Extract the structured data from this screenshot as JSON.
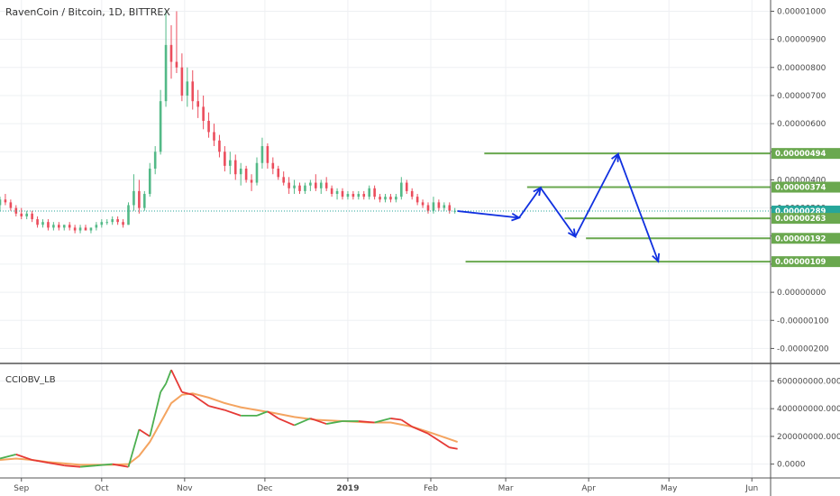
{
  "title": "RavenCoin / Bitcoin, 1D, BITTREX",
  "indicator_label": "CCIOBV_LB",
  "colors": {
    "up": "#53b987",
    "down": "#eb4d5c",
    "level": "#6aa84f",
    "last_price": "#26a69a",
    "arrow": "#1030e0",
    "obv": "#4caf50",
    "obv_down": "#e53935",
    "signal": "#f4a460",
    "grid": "#eef0f3",
    "axis": "#555555"
  },
  "price_axis_labels": [
    "0.00001000",
    "0.00000900",
    "0.00000800",
    "0.00000700",
    "0.00000600",
    "0.00000500",
    "0.00000400",
    "0.00000300",
    "0.00000200",
    "0.00000100",
    "0.00000000",
    "-0.00000100",
    "-0.00000200"
  ],
  "indicator_axis_labels": [
    "600000000.0000",
    "400000000.0000",
    "200000000.0000",
    "0.0000"
  ],
  "time_labels": [
    "Sep",
    "Oct",
    "Nov",
    "Dec",
    "2019",
    "Feb",
    "Mar",
    "Apr",
    "May",
    "Jun"
  ],
  "price_badges": [
    {
      "label": "0.00000494",
      "kind": "level"
    },
    {
      "label": "0.00000374",
      "kind": "level"
    },
    {
      "label": "0.00000289",
      "kind": "last"
    },
    {
      "label": "0.00000263",
      "kind": "level"
    },
    {
      "label": "0.00000192",
      "kind": "level"
    },
    {
      "label": "0.00000109",
      "kind": "level"
    }
  ],
  "chart_data": {
    "type": "candlestick",
    "title": "RavenCoin / Bitcoin, 1D, BITTREX",
    "y_unit": "BTC",
    "ylim": [
      -2.5e-06,
      1.04e-05
    ],
    "x_range": [
      "2018-08-24",
      "2019-06-08"
    ],
    "last_price": 2.89e-06,
    "horizontal_levels": [
      {
        "value": 4.94e-06,
        "from": "2019-02-21",
        "to": "2019-06-08"
      },
      {
        "value": 3.74e-06,
        "from": "2019-03-09",
        "to": "2019-06-08"
      },
      {
        "value": 2.63e-06,
        "from": "2019-03-23",
        "to": "2019-06-08"
      },
      {
        "value": 1.92e-06,
        "from": "2019-03-31",
        "to": "2019-06-08"
      },
      {
        "value": 1.09e-06,
        "from": "2019-02-14",
        "to": "2019-06-08"
      }
    ],
    "projection_path": [
      {
        "date": "2019-02-11",
        "value": 2.89e-06
      },
      {
        "date": "2019-03-06",
        "value": 2.65e-06
      },
      {
        "date": "2019-03-14",
        "value": 3.72e-06
      },
      {
        "date": "2019-03-27",
        "value": 1.98e-06
      },
      {
        "date": "2019-04-12",
        "value": 4.92e-06
      },
      {
        "date": "2019-04-27",
        "value": 1.1e-06
      }
    ],
    "candles": [
      [
        "2018-08-24",
        3.1e-06,
        3.4e-06,
        2.9e-06,
        3.3e-06
      ],
      [
        "2018-08-26",
        3.3e-06,
        3.5e-06,
        3.1e-06,
        3.2e-06
      ],
      [
        "2018-08-28",
        3.2e-06,
        3.3e-06,
        2.9e-06,
        3e-06
      ],
      [
        "2018-08-30",
        3e-06,
        3.1e-06,
        2.7e-06,
        2.8e-06
      ],
      [
        "2018-09-01",
        2.8e-06,
        3e-06,
        2.6e-06,
        2.7e-06
      ],
      [
        "2018-09-03",
        2.7e-06,
        2.9e-06,
        2.6e-06,
        2.8e-06
      ],
      [
        "2018-09-05",
        2.8e-06,
        2.9e-06,
        2.5e-06,
        2.6e-06
      ],
      [
        "2018-09-07",
        2.6e-06,
        2.7e-06,
        2.3e-06,
        2.4e-06
      ],
      [
        "2018-09-09",
        2.4e-06,
        2.6e-06,
        2.3e-06,
        2.5e-06
      ],
      [
        "2018-09-11",
        2.5e-06,
        2.6e-06,
        2.2e-06,
        2.3e-06
      ],
      [
        "2018-09-13",
        2.3e-06,
        2.5e-06,
        2.2e-06,
        2.4e-06
      ],
      [
        "2018-09-15",
        2.4e-06,
        2.5e-06,
        2.2e-06,
        2.3e-06
      ],
      [
        "2018-09-17",
        2.3e-06,
        2.4e-06,
        2.2e-06,
        2.4e-06
      ],
      [
        "2018-09-19",
        2.4e-06,
        2.5e-06,
        2.2e-06,
        2.3e-06
      ],
      [
        "2018-09-21",
        2.3e-06,
        2.4e-06,
        2.1e-06,
        2.2e-06
      ],
      [
        "2018-09-23",
        2.2e-06,
        2.4e-06,
        2.1e-06,
        2.3e-06
      ],
      [
        "2018-09-25",
        2.3e-06,
        2.4e-06,
        2.2e-06,
        2.2e-06
      ],
      [
        "2018-09-27",
        2.2e-06,
        2.3e-06,
        2.1e-06,
        2.3e-06
      ],
      [
        "2018-09-29",
        2.3e-06,
        2.5e-06,
        2.2e-06,
        2.4e-06
      ],
      [
        "2018-10-01",
        2.4e-06,
        2.6e-06,
        2.3e-06,
        2.5e-06
      ],
      [
        "2018-10-03",
        2.5e-06,
        2.6e-06,
        2.4e-06,
        2.5e-06
      ],
      [
        "2018-10-05",
        2.5e-06,
        2.7e-06,
        2.4e-06,
        2.6e-06
      ],
      [
        "2018-10-07",
        2.6e-06,
        2.7e-06,
        2.4e-06,
        2.5e-06
      ],
      [
        "2018-10-09",
        2.5e-06,
        2.6e-06,
        2.3e-06,
        2.4e-06
      ],
      [
        "2018-10-11",
        2.4e-06,
        3.2e-06,
        2.4e-06,
        3.1e-06
      ],
      [
        "2018-10-13",
        3.1e-06,
        4.2e-06,
        2.9e-06,
        3.6e-06
      ],
      [
        "2018-10-15",
        3.6e-06,
        4e-06,
        2.8e-06,
        3e-06
      ],
      [
        "2018-10-17",
        3e-06,
        3.6e-06,
        2.9e-06,
        3.5e-06
      ],
      [
        "2018-10-19",
        3.5e-06,
        4.6e-06,
        3.4e-06,
        4.4e-06
      ],
      [
        "2018-10-21",
        4.4e-06,
        5.2e-06,
        4.2e-06,
        5e-06
      ],
      [
        "2018-10-23",
        5e-06,
        7.2e-06,
        4.9e-06,
        6.8e-06
      ],
      [
        "2018-10-25",
        6.8e-06,
        1e-05,
        6.6e-06,
        8.8e-06
      ],
      [
        "2018-10-27",
        8.8e-06,
        9.5e-06,
        7.6e-06,
        8.2e-06
      ],
      [
        "2018-10-29",
        8.2e-06,
        1e-05,
        7.8e-06,
        8e-06
      ],
      [
        "2018-10-31",
        8e-06,
        8.5e-06,
        6.8e-06,
        7e-06
      ],
      [
        "2018-11-02",
        7e-06,
        8e-06,
        6.6e-06,
        7.5e-06
      ],
      [
        "2018-11-04",
        7.5e-06,
        7.9e-06,
        6.5e-06,
        6.8e-06
      ],
      [
        "2018-11-06",
        6.8e-06,
        7.2e-06,
        6.2e-06,
        6.6e-06
      ],
      [
        "2018-11-08",
        6.6e-06,
        7e-06,
        5.8e-06,
        6.1e-06
      ],
      [
        "2018-11-10",
        6.1e-06,
        6.4e-06,
        5.5e-06,
        5.7e-06
      ],
      [
        "2018-11-12",
        5.7e-06,
        6e-06,
        5.2e-06,
        5.4e-06
      ],
      [
        "2018-11-14",
        5.4e-06,
        5.6e-06,
        4.8e-06,
        5e-06
      ],
      [
        "2018-11-16",
        5e-06,
        5.2e-06,
        4.3e-06,
        4.5e-06
      ],
      [
        "2018-11-18",
        4.5e-06,
        5e-06,
        4.2e-06,
        4.7e-06
      ],
      [
        "2018-11-20",
        4.7e-06,
        4.9e-06,
        4e-06,
        4.2e-06
      ],
      [
        "2018-11-22",
        4.2e-06,
        4.6e-06,
        3.8e-06,
        4.4e-06
      ],
      [
        "2018-11-24",
        4.4e-06,
        4.5e-06,
        3.9e-06,
        4e-06
      ],
      [
        "2018-11-26",
        4e-06,
        4.2e-06,
        3.6e-06,
        3.9e-06
      ],
      [
        "2018-11-28",
        3.9e-06,
        4.8e-06,
        3.8e-06,
        4.6e-06
      ],
      [
        "2018-11-30",
        4.6e-06,
        5.5e-06,
        4.4e-06,
        5.2e-06
      ],
      [
        "2018-12-02",
        5.2e-06,
        5.3e-06,
        4.4e-06,
        4.6e-06
      ],
      [
        "2018-12-04",
        4.6e-06,
        4.8e-06,
        4.2e-06,
        4.4e-06
      ],
      [
        "2018-12-06",
        4.4e-06,
        4.5e-06,
        4e-06,
        4.1e-06
      ],
      [
        "2018-12-08",
        4.1e-06,
        4.3e-06,
        3.8e-06,
        3.9e-06
      ],
      [
        "2018-12-10",
        3.9e-06,
        4.1e-06,
        3.5e-06,
        3.7e-06
      ],
      [
        "2018-12-12",
        3.7e-06,
        4e-06,
        3.5e-06,
        3.8e-06
      ],
      [
        "2018-12-14",
        3.8e-06,
        3.9e-06,
        3.5e-06,
        3.6e-06
      ],
      [
        "2018-12-16",
        3.6e-06,
        3.9e-06,
        3.5e-06,
        3.8e-06
      ],
      [
        "2018-12-18",
        3.8e-06,
        4e-06,
        3.6e-06,
        3.9e-06
      ],
      [
        "2018-12-20",
        3.9e-06,
        4.2e-06,
        3.6e-06,
        3.7e-06
      ],
      [
        "2018-12-22",
        3.7e-06,
        4e-06,
        3.5e-06,
        3.9e-06
      ],
      [
        "2018-12-24",
        3.9e-06,
        4.1e-06,
        3.6e-06,
        3.7e-06
      ],
      [
        "2018-12-26",
        3.7e-06,
        3.8e-06,
        3.4e-06,
        3.5e-06
      ],
      [
        "2018-12-28",
        3.5e-06,
        3.7e-06,
        3.3e-06,
        3.6e-06
      ],
      [
        "2018-12-30",
        3.6e-06,
        3.7e-06,
        3.3e-06,
        3.4e-06
      ],
      [
        "2019-01-01",
        3.4e-06,
        3.6e-06,
        3.3e-06,
        3.5e-06
      ],
      [
        "2019-01-03",
        3.5e-06,
        3.6e-06,
        3.3e-06,
        3.4e-06
      ],
      [
        "2019-01-05",
        3.4e-06,
        3.6e-06,
        3.3e-06,
        3.5e-06
      ],
      [
        "2019-01-07",
        3.5e-06,
        3.6e-06,
        3.3e-06,
        3.4e-06
      ],
      [
        "2019-01-09",
        3.4e-06,
        3.8e-06,
        3.3e-06,
        3.7e-06
      ],
      [
        "2019-01-11",
        3.7e-06,
        3.8e-06,
        3.3e-06,
        3.4e-06
      ],
      [
        "2019-01-13",
        3.4e-06,
        3.5e-06,
        3.2e-06,
        3.3e-06
      ],
      [
        "2019-01-15",
        3.3e-06,
        3.5e-06,
        3.2e-06,
        3.4e-06
      ],
      [
        "2019-01-17",
        3.4e-06,
        3.5e-06,
        3.2e-06,
        3.3e-06
      ],
      [
        "2019-01-19",
        3.3e-06,
        3.5e-06,
        3.2e-06,
        3.4e-06
      ],
      [
        "2019-01-21",
        3.4e-06,
        4.1e-06,
        3.3e-06,
        3.9e-06
      ],
      [
        "2019-01-23",
        3.9e-06,
        4e-06,
        3.5e-06,
        3.6e-06
      ],
      [
        "2019-01-25",
        3.6e-06,
        3.7e-06,
        3.3e-06,
        3.4e-06
      ],
      [
        "2019-01-27",
        3.4e-06,
        3.5e-06,
        3.1e-06,
        3.2e-06
      ],
      [
        "2019-01-29",
        3.2e-06,
        3.3e-06,
        3e-06,
        3.1e-06
      ],
      [
        "2019-01-31",
        3.1e-06,
        3.2e-06,
        2.8e-06,
        2.9e-06
      ],
      [
        "2019-02-02",
        2.9e-06,
        3.4e-06,
        2.8e-06,
        3.2e-06
      ],
      [
        "2019-02-04",
        3.2e-06,
        3.3e-06,
        2.9e-06,
        3e-06
      ],
      [
        "2019-02-06",
        3e-06,
        3.2e-06,
        2.9e-06,
        3.1e-06
      ],
      [
        "2019-02-08",
        3.1e-06,
        3.2e-06,
        2.8e-06,
        2.9e-06
      ],
      [
        "2019-02-10",
        2.9e-06,
        3e-06,
        2.8e-06,
        2.9e-06
      ]
    ],
    "indicator": {
      "name": "CCIOBV_LB",
      "ylim": [
        -100000000,
        720000000
      ],
      "obv": [
        [
          "2018-08-24",
          40000000
        ],
        [
          "2018-08-30",
          70000000
        ],
        [
          "2018-09-05",
          30000000
        ],
        [
          "2018-09-11",
          10000000
        ],
        [
          "2018-09-17",
          -10000000
        ],
        [
          "2018-09-23",
          -20000000
        ],
        [
          "2018-09-29",
          -10000000
        ],
        [
          "2018-10-05",
          0
        ],
        [
          "2018-10-11",
          -20000000
        ],
        [
          "2018-10-15",
          250000000
        ],
        [
          "2018-10-19",
          200000000
        ],
        [
          "2018-10-23",
          520000000
        ],
        [
          "2018-10-25",
          580000000
        ],
        [
          "2018-10-27",
          680000000
        ],
        [
          "2018-10-31",
          520000000
        ],
        [
          "2018-11-04",
          500000000
        ],
        [
          "2018-11-10",
          420000000
        ],
        [
          "2018-11-16",
          390000000
        ],
        [
          "2018-11-22",
          350000000
        ],
        [
          "2018-11-28",
          350000000
        ],
        [
          "2018-12-02",
          380000000
        ],
        [
          "2018-12-06",
          330000000
        ],
        [
          "2018-12-12",
          280000000
        ],
        [
          "2018-12-18",
          330000000
        ],
        [
          "2018-12-24",
          290000000
        ],
        [
          "2018-12-30",
          310000000
        ],
        [
          "2019-01-05",
          310000000
        ],
        [
          "2019-01-11",
          300000000
        ],
        [
          "2019-01-17",
          330000000
        ],
        [
          "2019-01-21",
          320000000
        ],
        [
          "2019-01-25",
          270000000
        ],
        [
          "2019-01-31",
          220000000
        ],
        [
          "2019-02-04",
          170000000
        ],
        [
          "2019-02-08",
          120000000
        ],
        [
          "2019-02-11",
          110000000
        ]
      ],
      "signal": [
        [
          "2018-08-24",
          30000000
        ],
        [
          "2018-08-30",
          40000000
        ],
        [
          "2018-09-05",
          30000000
        ],
        [
          "2018-09-11",
          15000000
        ],
        [
          "2018-09-17",
          5000000
        ],
        [
          "2018-09-23",
          -5000000
        ],
        [
          "2018-09-29",
          -5000000
        ],
        [
          "2018-10-05",
          -5000000
        ],
        [
          "2018-10-11",
          0
        ],
        [
          "2018-10-15",
          60000000
        ],
        [
          "2018-10-19",
          160000000
        ],
        [
          "2018-10-23",
          300000000
        ],
        [
          "2018-10-27",
          440000000
        ],
        [
          "2018-10-31",
          500000000
        ],
        [
          "2018-11-04",
          510000000
        ],
        [
          "2018-11-10",
          480000000
        ],
        [
          "2018-11-16",
          440000000
        ],
        [
          "2018-11-22",
          410000000
        ],
        [
          "2018-11-28",
          390000000
        ],
        [
          "2018-12-04",
          370000000
        ],
        [
          "2018-12-12",
          340000000
        ],
        [
          "2018-12-20",
          320000000
        ],
        [
          "2018-12-30",
          310000000
        ],
        [
          "2019-01-09",
          300000000
        ],
        [
          "2019-01-17",
          300000000
        ],
        [
          "2019-01-25",
          270000000
        ],
        [
          "2019-02-02",
          220000000
        ],
        [
          "2019-02-08",
          180000000
        ],
        [
          "2019-02-11",
          160000000
        ]
      ]
    }
  }
}
